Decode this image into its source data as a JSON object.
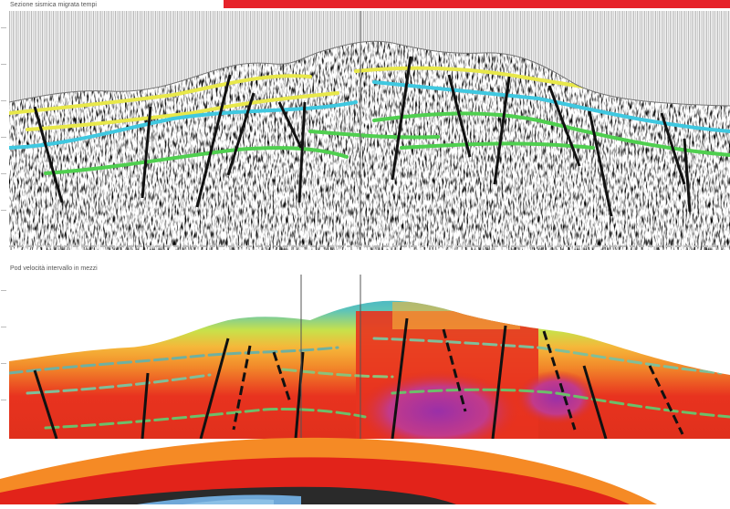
{
  "header": {
    "accent_color": "#e6232a"
  },
  "seismic_panel": {
    "title": "Sezione sismica migrata tempi",
    "colors": {
      "yellow": "#e8e84a",
      "cyan": "#3fc8e0",
      "green": "#4fcf4f",
      "fault": "#111111"
    }
  },
  "velocity_panel": {
    "title": "Pod velocità intervallo in mezzi",
    "colors": {
      "blue": "#2a9be0",
      "green_yellow": "#c8e14a",
      "orange": "#f28a2a",
      "red": "#e8331f",
      "magenta": "#b0389a"
    }
  },
  "footer_art": {
    "colors": {
      "orange": "#f58a25",
      "red": "#e2231a",
      "dark": "#222222"
    }
  }
}
